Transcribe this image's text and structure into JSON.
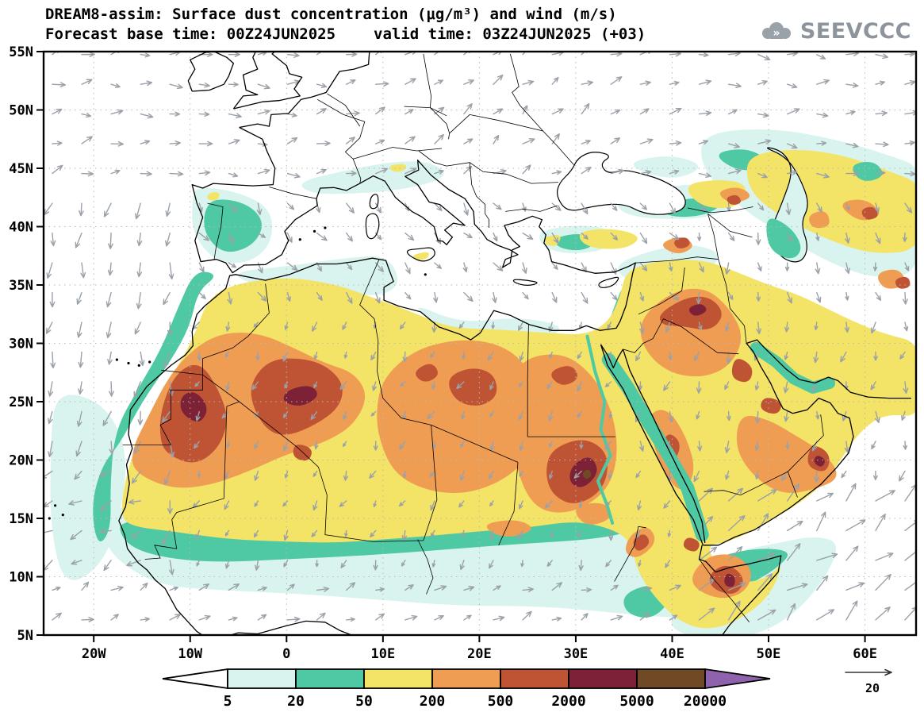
{
  "header": {
    "title_line1": "DREAM8-assim: Surface dust concentration (μg/m³) and wind (m/s)",
    "forecast_base": "Forecast base time: 00Z24JUN2025",
    "valid_time": "valid time: 03Z24JUN2025 (+03)",
    "logo_text": "SEEVCCC"
  },
  "map": {
    "lat_ticks": [
      {
        "label": "55N",
        "lat": 55
      },
      {
        "label": "50N",
        "lat": 50
      },
      {
        "label": "45N",
        "lat": 45
      },
      {
        "label": "40N",
        "lat": 40
      },
      {
        "label": "35N",
        "lat": 35
      },
      {
        "label": "30N",
        "lat": 30
      },
      {
        "label": "25N",
        "lat": 25
      },
      {
        "label": "20N",
        "lat": 20
      },
      {
        "label": "15N",
        "lat": 15
      },
      {
        "label": "10N",
        "lat": 10
      },
      {
        "label": "5N",
        "lat": 5
      }
    ],
    "lon_ticks": [
      {
        "label": "20W",
        "lon": -20
      },
      {
        "label": "10W",
        "lon": -10
      },
      {
        "label": "0",
        "lon": 0
      },
      {
        "label": "10E",
        "lon": 10
      },
      {
        "label": "20E",
        "lon": 20
      },
      {
        "label": "30E",
        "lon": 30
      },
      {
        "label": "40E",
        "lon": 40
      },
      {
        "label": "50E",
        "lon": 50
      },
      {
        "label": "60E",
        "lon": 60
      }
    ]
  },
  "legend": {
    "values": [
      "5",
      "20",
      "50",
      "200",
      "500",
      "2000",
      "5000",
      "20000"
    ],
    "colors": [
      "#ffffff",
      "#d9f4ef",
      "#4ec9a4",
      "#f3e366",
      "#f09d54",
      "#bf5435",
      "#7c2136",
      "#6f4a25",
      "#8f62ad"
    ],
    "wind_reference_label": "20"
  },
  "colors": {
    "land_line": "#000000",
    "grid": "#b8b8b8",
    "wind_arrow": "#9ba1a8",
    "title_text": "#111111",
    "logo_gray": "#8d949b"
  }
}
